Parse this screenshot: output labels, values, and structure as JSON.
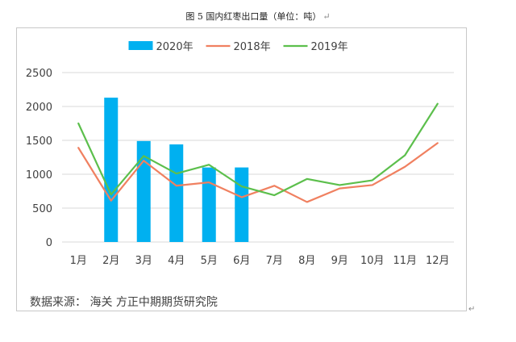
{
  "caption": {
    "text": "图 5  国内红枣出口量（单位：吨）",
    "return_mark": "↵"
  },
  "source_note": "数据来源：  海关 方正中期期货研究院",
  "return_mark_outer": "↵",
  "chart_data": {
    "type": "bar+line",
    "title": "图 5  国内红枣出口量（单位：吨）",
    "categories": [
      "1月",
      "2月",
      "3月",
      "4月",
      "5月",
      "6月",
      "7月",
      "8月",
      "9月",
      "10月",
      "11月",
      "12月"
    ],
    "series": [
      {
        "name": "2020年",
        "type": "bar",
        "color": "#00b0f0",
        "values": [
          null,
          2130,
          1490,
          1440,
          1100,
          1100,
          null,
          null,
          null,
          null,
          null,
          null
        ]
      },
      {
        "name": "2018年",
        "type": "line",
        "color": "#f08060",
        "values": [
          1390,
          610,
          1200,
          830,
          880,
          660,
          830,
          590,
          790,
          840,
          1110,
          1460
        ]
      },
      {
        "name": "2019年",
        "type": "line",
        "color": "#5cbf4c",
        "values": [
          1750,
          700,
          1270,
          1010,
          1140,
          820,
          690,
          930,
          840,
          910,
          1280,
          2040
        ]
      }
    ],
    "yticks": [
      "0",
      "500",
      "1000",
      "1500",
      "2000",
      "2500"
    ],
    "ylim": [
      0,
      2500
    ],
    "grid": true,
    "legend_position": "top-center"
  }
}
